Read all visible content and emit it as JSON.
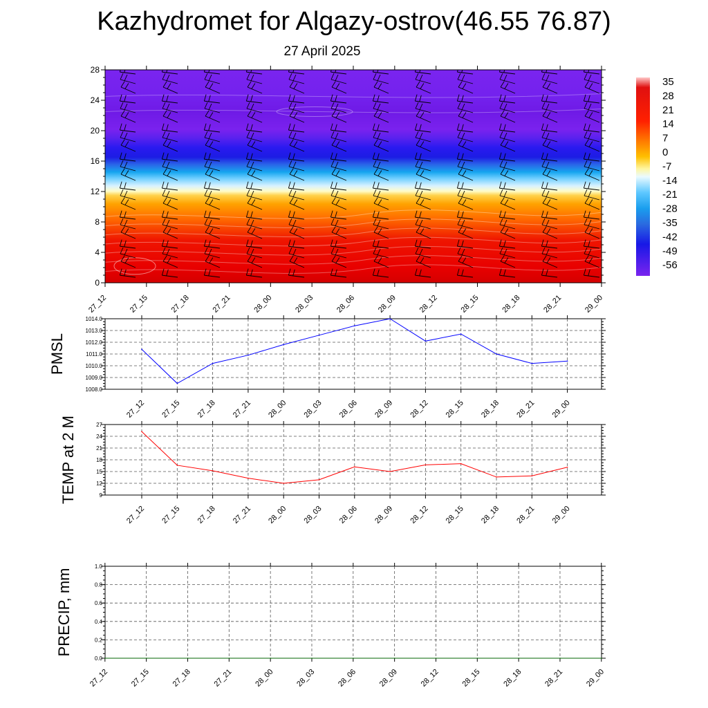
{
  "title": "Kazhydromet for Algazy-ostrov(46.55 76.87)",
  "subtitle": "27 April 2025",
  "chart_data": [
    {
      "type": "heatmap",
      "x_categories": [
        "27_12",
        "27_15",
        "27_18",
        "27_21",
        "28_00",
        "28_03",
        "28_06",
        "28_09",
        "28_12",
        "28_15",
        "28_18",
        "28_21",
        "29_00"
      ],
      "y_ticks": [
        0,
        4,
        8,
        12,
        16,
        20,
        24,
        28
      ],
      "ylim": [
        0,
        28
      ],
      "colorbar_labels": [
        35,
        28,
        21,
        14,
        7,
        0,
        -7,
        -14,
        -21,
        -28,
        -35,
        -42,
        -49,
        -56
      ],
      "temperature_profile": [
        {
          "y": 0,
          "value": 30
        },
        {
          "y": 2,
          "value": 28
        },
        {
          "y": 4,
          "value": 24
        },
        {
          "y": 6,
          "value": 18
        },
        {
          "y": 8,
          "value": 13
        },
        {
          "y": 10,
          "value": 7
        },
        {
          "y": 11.5,
          "value": 2
        },
        {
          "y": 12.5,
          "value": -6
        },
        {
          "y": 13.5,
          "value": -16
        },
        {
          "y": 15,
          "value": -28
        },
        {
          "y": 16.5,
          "value": -42
        },
        {
          "y": 17.8,
          "value": -54
        },
        {
          "y": 18.8,
          "value": -58
        },
        {
          "y": 20,
          "value": -52
        },
        {
          "y": 24,
          "value": -56
        },
        {
          "y": 28,
          "value": -52
        }
      ],
      "wind_barbs": "present"
    },
    {
      "type": "line",
      "ylabel": "PMSL",
      "categories": [
        "27_12",
        "27_15",
        "27_18",
        "27_21",
        "28_00",
        "28_03",
        "28_06",
        "28_09",
        "28_12",
        "28_15",
        "28_18",
        "28_21",
        "29_00"
      ],
      "values": [
        1011.4,
        1008.5,
        1010.2,
        1010.9,
        1011.8,
        1012.6,
        1013.4,
        1014.0,
        1012.1,
        1012.7,
        1011.0,
        1010.2,
        1010.4
      ],
      "ylim": [
        1008,
        1014
      ],
      "yticks": [
        "1008.0",
        "1009.0",
        "1010.0",
        "1011.0",
        "1012.0",
        "1013.0",
        "1014.0"
      ],
      "color": "#0000ff"
    },
    {
      "type": "line",
      "ylabel": "TEMP at 2 M",
      "categories": [
        "27_12",
        "27_15",
        "27_18",
        "27_21",
        "28_00",
        "28_03",
        "28_06",
        "28_09",
        "28_12",
        "28_15",
        "28_18",
        "28_21",
        "29_00"
      ],
      "values": [
        25.2,
        16.6,
        15.2,
        13.3,
        12.0,
        12.9,
        16.2,
        15.0,
        16.7,
        17.0,
        13.6,
        13.9,
        16.1
      ],
      "ylim": [
        9,
        27
      ],
      "yticks": [
        "9",
        "12",
        "15",
        "18",
        "21",
        "24",
        "27"
      ],
      "color": "#ff0000"
    },
    {
      "type": "line",
      "ylabel": "PRECIP, mm",
      "categories": [
        "27_12",
        "27_15",
        "27_18",
        "27_21",
        "28_00",
        "28_03",
        "28_06",
        "28_09",
        "28_12",
        "28_15",
        "28_18",
        "28_21",
        "29_00"
      ],
      "values": [
        0,
        0,
        0,
        0,
        0,
        0,
        0,
        0,
        0,
        0,
        0,
        0,
        0
      ],
      "ylim": [
        0,
        1
      ],
      "yticks": [
        "0.0",
        "0.2",
        "0.4",
        "0.6",
        "0.8",
        "1.0"
      ],
      "color": "#006400"
    }
  ]
}
